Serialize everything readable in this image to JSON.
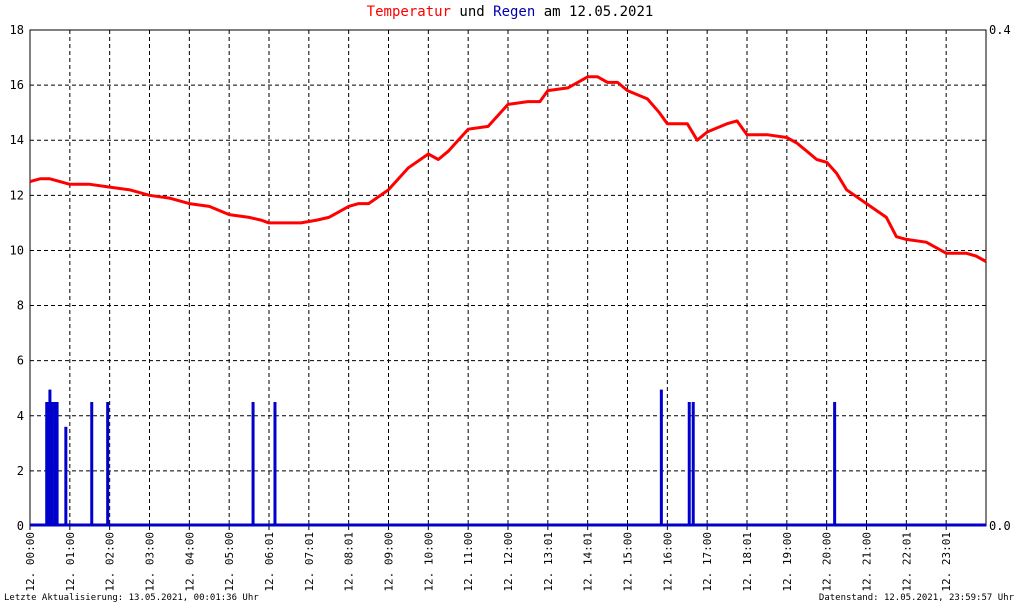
{
  "title": {
    "part1": "Temperatur",
    "part2": "und",
    "part3": "Regen",
    "part4": "am",
    "date": "12.05.2021"
  },
  "footer": {
    "left": "Letzte Aktualisierung: 13.05.2021, 00:01:36 Uhr",
    "right": "Datenstand: 12.05.2021, 23:59:57 Uhr"
  },
  "colors": {
    "temperature": "#ff0000",
    "rain": "#0000cc",
    "grid": "#000000",
    "title_red": "#ff0000",
    "title_blue": "#0000aa"
  },
  "chart_data": {
    "type": "line",
    "title": "Temperatur und Regen am 12.05.2021",
    "grid": true,
    "x_range_hours": [
      0,
      24
    ],
    "y_left_range": [
      0,
      18
    ],
    "y_left_ticks": [
      "0",
      "2",
      "4",
      "6",
      "8",
      "10",
      "12",
      "14",
      "16",
      "18"
    ],
    "y_right_range": [
      0,
      0.4
    ],
    "y_right_ticks": [
      "0.0",
      "0.4"
    ],
    "x_tick_labels": [
      "12. 00:00",
      "12. 01:00",
      "12. 02:00",
      "12. 03:00",
      "12. 04:00",
      "12. 05:00",
      "12. 06:01",
      "12. 07:01",
      "12. 08:01",
      "12. 09:00",
      "12. 10:00",
      "12. 11:00",
      "12. 12:00",
      "12. 13:01",
      "12. 14:01",
      "12. 15:00",
      "12. 16:00",
      "12. 17:00",
      "12. 18:01",
      "12. 19:00",
      "12. 20:00",
      "12. 21:00",
      "12. 22:01",
      "12. 23:01"
    ],
    "series": [
      {
        "name": "Temperatur",
        "axis": "left",
        "x": [
          0.0,
          0.25,
          0.5,
          0.75,
          1.0,
          1.5,
          2.0,
          2.5,
          3.0,
          3.5,
          4.0,
          4.5,
          5.0,
          5.5,
          5.8,
          6.0,
          6.3,
          6.8,
          7.2,
          7.5,
          8.0,
          8.25,
          8.5,
          9.0,
          9.5,
          10.0,
          10.25,
          10.5,
          10.75,
          11.0,
          11.5,
          12.0,
          12.5,
          12.8,
          13.0,
          13.5,
          13.75,
          14.0,
          14.25,
          14.5,
          14.75,
          15.0,
          15.5,
          15.8,
          16.0,
          16.5,
          16.75,
          17.0,
          17.5,
          17.75,
          18.0,
          18.5,
          19.0,
          19.25,
          19.5,
          19.75,
          20.0,
          20.25,
          20.5,
          21.0,
          21.5,
          21.75,
          22.0,
          22.5,
          22.75,
          23.0,
          23.25,
          23.5,
          23.75,
          24.0
        ],
        "values": [
          12.5,
          12.6,
          12.6,
          12.5,
          12.4,
          12.4,
          12.3,
          12.2,
          12.0,
          11.9,
          11.7,
          11.6,
          11.3,
          11.2,
          11.1,
          11.0,
          11.0,
          11.0,
          11.1,
          11.2,
          11.6,
          11.7,
          11.7,
          12.2,
          13.0,
          13.5,
          13.3,
          13.6,
          14.0,
          14.4,
          14.5,
          15.3,
          15.4,
          15.4,
          15.8,
          15.9,
          16.1,
          16.3,
          16.3,
          16.1,
          16.1,
          15.8,
          15.5,
          15.0,
          14.6,
          14.6,
          14.0,
          14.3,
          14.6,
          14.7,
          14.2,
          14.2,
          14.1,
          13.9,
          13.6,
          13.3,
          13.2,
          12.8,
          12.2,
          11.7,
          11.2,
          10.5,
          10.4,
          10.3,
          10.1,
          9.9,
          9.9,
          9.9,
          9.8,
          9.6
        ]
      },
      {
        "name": "Regen",
        "axis": "right",
        "type": "bar",
        "x": [
          0.42,
          0.46,
          0.5,
          0.55,
          0.62,
          0.68,
          0.9,
          1.55,
          1.95,
          5.6,
          6.15,
          15.85,
          16.55,
          16.65,
          20.2
        ],
        "values": [
          0.1,
          0.1,
          0.11,
          0.1,
          0.1,
          0.1,
          0.08,
          0.1,
          0.1,
          0.1,
          0.1,
          0.11,
          0.1,
          0.1,
          0.1
        ]
      }
    ]
  }
}
